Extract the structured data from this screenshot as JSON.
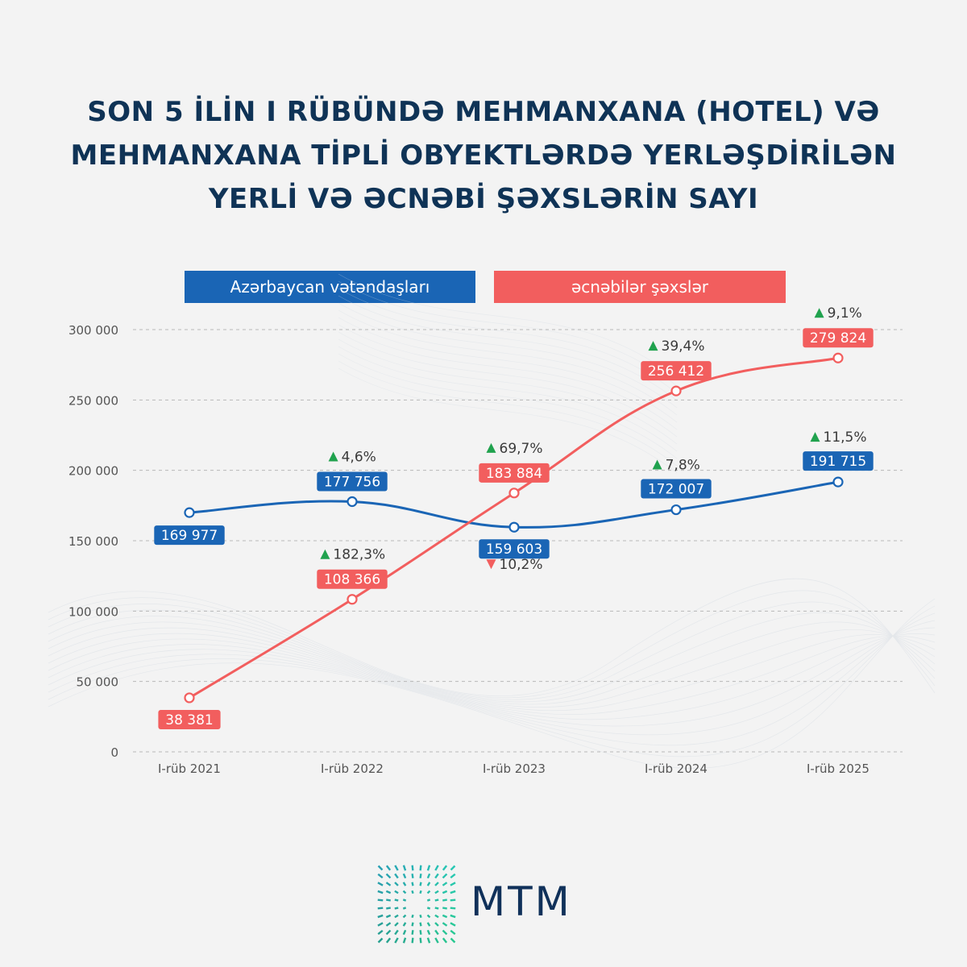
{
  "title_lines": [
    "SON 5 İLİN I RÜBÜNDƏ MEHMANXANA (HOTEL) VƏ",
    "MEHMANXANA TİPLİ OBYEKTLƏRDƏ YERLƏŞDİRİLƏN",
    "YERLİ VƏ ƏCNƏBİ ŞƏXSLƏRİN SAYI"
  ],
  "brand": {
    "name": "MTM"
  },
  "colors": {
    "blue": "#1a65b5",
    "red": "#f25e5e",
    "up": "#20a24e",
    "down": "#f25e5e",
    "title": "#0f3356",
    "axis_text": "#555555"
  },
  "chart_data": {
    "type": "line",
    "categories": [
      "I-rüb 2021",
      "I-rüb 2022",
      "I-rüb 2023",
      "I-rüb 2024",
      "I-rüb 2025"
    ],
    "ylim": [
      0,
      300000
    ],
    "yticks": [
      0,
      50000,
      100000,
      150000,
      200000,
      250000,
      300000
    ],
    "ytick_labels": [
      "0",
      "50 000",
      "100 000",
      "150 000",
      "200 000",
      "250 000",
      "300 000"
    ],
    "grid": true,
    "legend_position": "top",
    "series": [
      {
        "name": "Azərbaycan vətəndaşları",
        "color": "#1a65b5",
        "values": [
          169977,
          177756,
          159603,
          172007,
          191715
        ],
        "value_labels": [
          "169 977",
          "177 756",
          "159 603",
          "172 007",
          "191 715"
        ],
        "changes": [
          null,
          "4,6%",
          "10,2%",
          "7,8%",
          "11,5%"
        ],
        "change_directions": [
          null,
          "up",
          "down",
          "up",
          "up"
        ]
      },
      {
        "name": "əcnəbilər şəxslər",
        "color": "#f25e5e",
        "values": [
          38381,
          108366,
          183884,
          256412,
          279824
        ],
        "value_labels": [
          "38 381",
          "108 366",
          "183 884",
          "256 412",
          "279 824"
        ],
        "changes": [
          null,
          "182,3%",
          "69,7%",
          "39,4%",
          "9,1%"
        ],
        "change_directions": [
          null,
          "up",
          "up",
          "up",
          "up"
        ]
      }
    ]
  }
}
